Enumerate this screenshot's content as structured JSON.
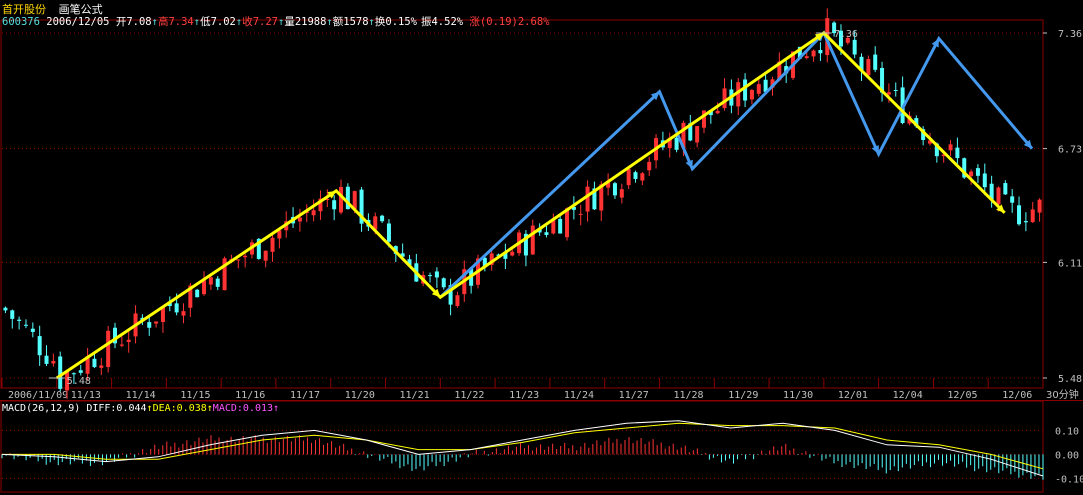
{
  "header": {
    "stock_name": "首开股份",
    "formula_name": "画笔公式",
    "code": "600376",
    "date": "2006/12/05",
    "open_label": "开",
    "open": "7.08",
    "high_label": "高",
    "high": "7.34",
    "low_label": "低",
    "low": "7.02",
    "close_label": "收",
    "close": "7.27",
    "volume_label": "量",
    "volume": "21988",
    "amount_label": "额",
    "amount": "1578",
    "turnover_label": "换",
    "turnover": "0.15%",
    "amplitude_label": "振",
    "amplitude": "4.52%",
    "change_label": "涨",
    "change": "(0.19)",
    "change_pct": "2.68%"
  },
  "macd_header": {
    "name": "MACD(26,12,9)",
    "diff_label": "DIFF:",
    "diff": "0.044",
    "dea_label": "DEA:",
    "dea": "0.038",
    "macd_label": "MACD:",
    "macd": "0.013"
  },
  "colors": {
    "background": "#000000",
    "up_candle": "#ff3333",
    "down_candle": "#54ffff",
    "yellow_pen": "#ffff00",
    "blue_pen": "#4499ee",
    "grid": "#8b0000",
    "axis_text": "#c0c0c0",
    "diff_line": "#ffffff",
    "dea_line": "#ffff00"
  },
  "chart_data": {
    "type": "candlestick",
    "period_label": "30分钟",
    "price_axis_ticks": [
      "7.36",
      "6.73",
      "6.11",
      "5.48"
    ],
    "ylim": [
      5.48,
      7.36
    ],
    "dates": [
      "2006/11/09",
      "11/13",
      "11/14",
      "11/15",
      "11/16",
      "11/17",
      "11/20",
      "11/21",
      "11/22",
      "11/23",
      "11/24",
      "11/27",
      "11/28",
      "11/29",
      "11/30",
      "12/01",
      "12/04",
      "12/05",
      "12/06"
    ],
    "annotations": [
      {
        "text": "5.48",
        "date": "11/13",
        "price": 5.48
      },
      {
        "text": "7.36",
        "date": "12/01",
        "price": 7.36
      }
    ],
    "yellow_pen": [
      {
        "date_index": 1.0,
        "price": 5.48
      },
      {
        "date_index": 6.1,
        "price": 6.5
      },
      {
        "date_index": 8.0,
        "price": 5.92
      },
      {
        "date_index": 15.0,
        "price": 7.36
      },
      {
        "date_index": 18.3,
        "price": 6.38
      }
    ],
    "blue_pen": [
      {
        "date_index": 8.0,
        "price": 5.92
      },
      {
        "date_index": 12.0,
        "price": 7.04
      },
      {
        "date_index": 12.6,
        "price": 6.62
      },
      {
        "date_index": 15.0,
        "price": 7.36
      },
      {
        "date_index": 16.0,
        "price": 6.7
      },
      {
        "date_index": 17.1,
        "price": 7.33
      },
      {
        "date_index": 18.8,
        "price": 6.73
      }
    ],
    "macd_axis_ticks": [
      "0.10",
      "0.00",
      "-0.10"
    ],
    "macd_ylim": [
      -0.14,
      0.16
    ],
    "macd": {
      "diff_name": "DIFF",
      "dea_name": "DEA",
      "diff": [
        0.0,
        -0.01,
        -0.03,
        -0.01,
        0.04,
        0.08,
        0.1,
        0.06,
        0.0,
        0.02,
        0.06,
        0.1,
        0.13,
        0.14,
        0.11,
        0.13,
        0.1,
        0.04,
        0.03,
        -0.02,
        -0.09
      ],
      "dea": [
        0.0,
        0.0,
        -0.02,
        -0.02,
        0.02,
        0.06,
        0.08,
        0.06,
        0.02,
        0.02,
        0.05,
        0.09,
        0.11,
        0.13,
        0.12,
        0.12,
        0.11,
        0.06,
        0.04,
        0.0,
        -0.06
      ]
    }
  }
}
